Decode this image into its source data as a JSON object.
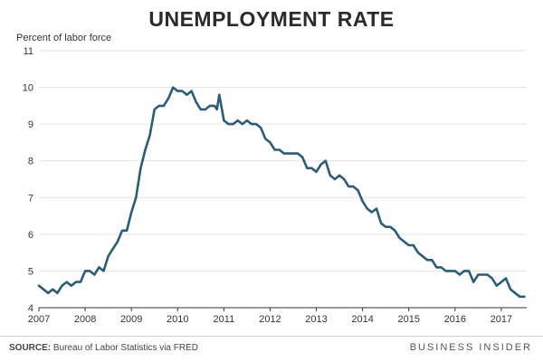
{
  "footer": {
    "source_label": "SOURCE:",
    "source_text": " Bureau of Labor Statistics via FRED",
    "brand": "BUSINESS INSIDER"
  },
  "colors": {
    "line": "#2a5d78",
    "grid": "#e3e3e3",
    "axis": "#333333"
  },
  "chart_data": {
    "type": "line",
    "title": "UNEMPLOYMENT RATE",
    "ylabel": "Percent of labor force",
    "xlabel": "",
    "xlim": [
      2007.0,
      2017.55
    ],
    "ylim": [
      4,
      11
    ],
    "xticks": [
      2007,
      2008,
      2009,
      2010,
      2011,
      2012,
      2013,
      2014,
      2015,
      2016,
      2017
    ],
    "yticks": [
      4,
      5,
      6,
      7,
      8,
      9,
      10,
      11
    ],
    "grid": "horizontal",
    "series": [
      {
        "x": [
          2007.0,
          2007.1,
          2007.2,
          2007.3,
          2007.4,
          2007.5,
          2007.6,
          2007.7,
          2007.8,
          2007.9,
          2008.0,
          2008.1,
          2008.2,
          2008.3,
          2008.4,
          2008.5,
          2008.6,
          2008.7,
          2008.8,
          2008.9,
          2009.0,
          2009.1,
          2009.2,
          2009.3,
          2009.4,
          2009.5,
          2009.6,
          2009.7,
          2009.75,
          2009.8,
          2009.9,
          2010.0,
          2010.1,
          2010.2,
          2010.3,
          2010.4,
          2010.5,
          2010.6,
          2010.7,
          2010.8,
          2010.85,
          2010.9,
          2011.0,
          2011.1,
          2011.2,
          2011.3,
          2011.4,
          2011.5,
          2011.6,
          2011.7,
          2011.8,
          2011.9,
          2012.0,
          2012.1,
          2012.2,
          2012.3,
          2012.4,
          2012.5,
          2012.6,
          2012.7,
          2012.8,
          2012.9,
          2013.0,
          2013.1,
          2013.2,
          2013.3,
          2013.4,
          2013.5,
          2013.6,
          2013.7,
          2013.8,
          2013.9,
          2014.0,
          2014.1,
          2014.2,
          2014.3,
          2014.4,
          2014.5,
          2014.6,
          2014.7,
          2014.8,
          2014.9,
          2015.0,
          2015.1,
          2015.2,
          2015.3,
          2015.4,
          2015.5,
          2015.6,
          2015.7,
          2015.8,
          2015.9,
          2016.0,
          2016.1,
          2016.2,
          2016.3,
          2016.4,
          2016.5,
          2016.6,
          2016.7,
          2016.8,
          2016.9,
          2017.0,
          2017.1,
          2017.2,
          2017.3,
          2017.4,
          2017.5
        ],
        "values": [
          4.6,
          4.5,
          4.4,
          4.5,
          4.4,
          4.6,
          4.7,
          4.6,
          4.7,
          4.7,
          5.0,
          5.0,
          4.9,
          5.1,
          5.0,
          5.4,
          5.6,
          5.8,
          6.1,
          6.1,
          6.6,
          7.0,
          7.8,
          8.3,
          8.7,
          9.4,
          9.5,
          9.5,
          9.6,
          9.7,
          10.0,
          9.9,
          9.9,
          9.8,
          9.9,
          9.6,
          9.4,
          9.4,
          9.5,
          9.5,
          9.4,
          9.8,
          9.1,
          9.0,
          9.0,
          9.1,
          9.0,
          9.1,
          9.0,
          9.0,
          8.9,
          8.6,
          8.5,
          8.3,
          8.3,
          8.2,
          8.2,
          8.2,
          8.2,
          8.1,
          7.8,
          7.8,
          7.7,
          7.9,
          8.0,
          7.6,
          7.5,
          7.6,
          7.5,
          7.3,
          7.3,
          7.2,
          6.9,
          6.7,
          6.6,
          6.7,
          6.3,
          6.2,
          6.2,
          6.1,
          5.9,
          5.8,
          5.7,
          5.7,
          5.5,
          5.4,
          5.3,
          5.3,
          5.1,
          5.1,
          5.0,
          5.0,
          5.0,
          4.9,
          5.0,
          5.0,
          4.7,
          4.9,
          4.9,
          4.9,
          4.8,
          4.6,
          4.7,
          4.8,
          4.5,
          4.4,
          4.3,
          4.3
        ]
      }
    ]
  }
}
